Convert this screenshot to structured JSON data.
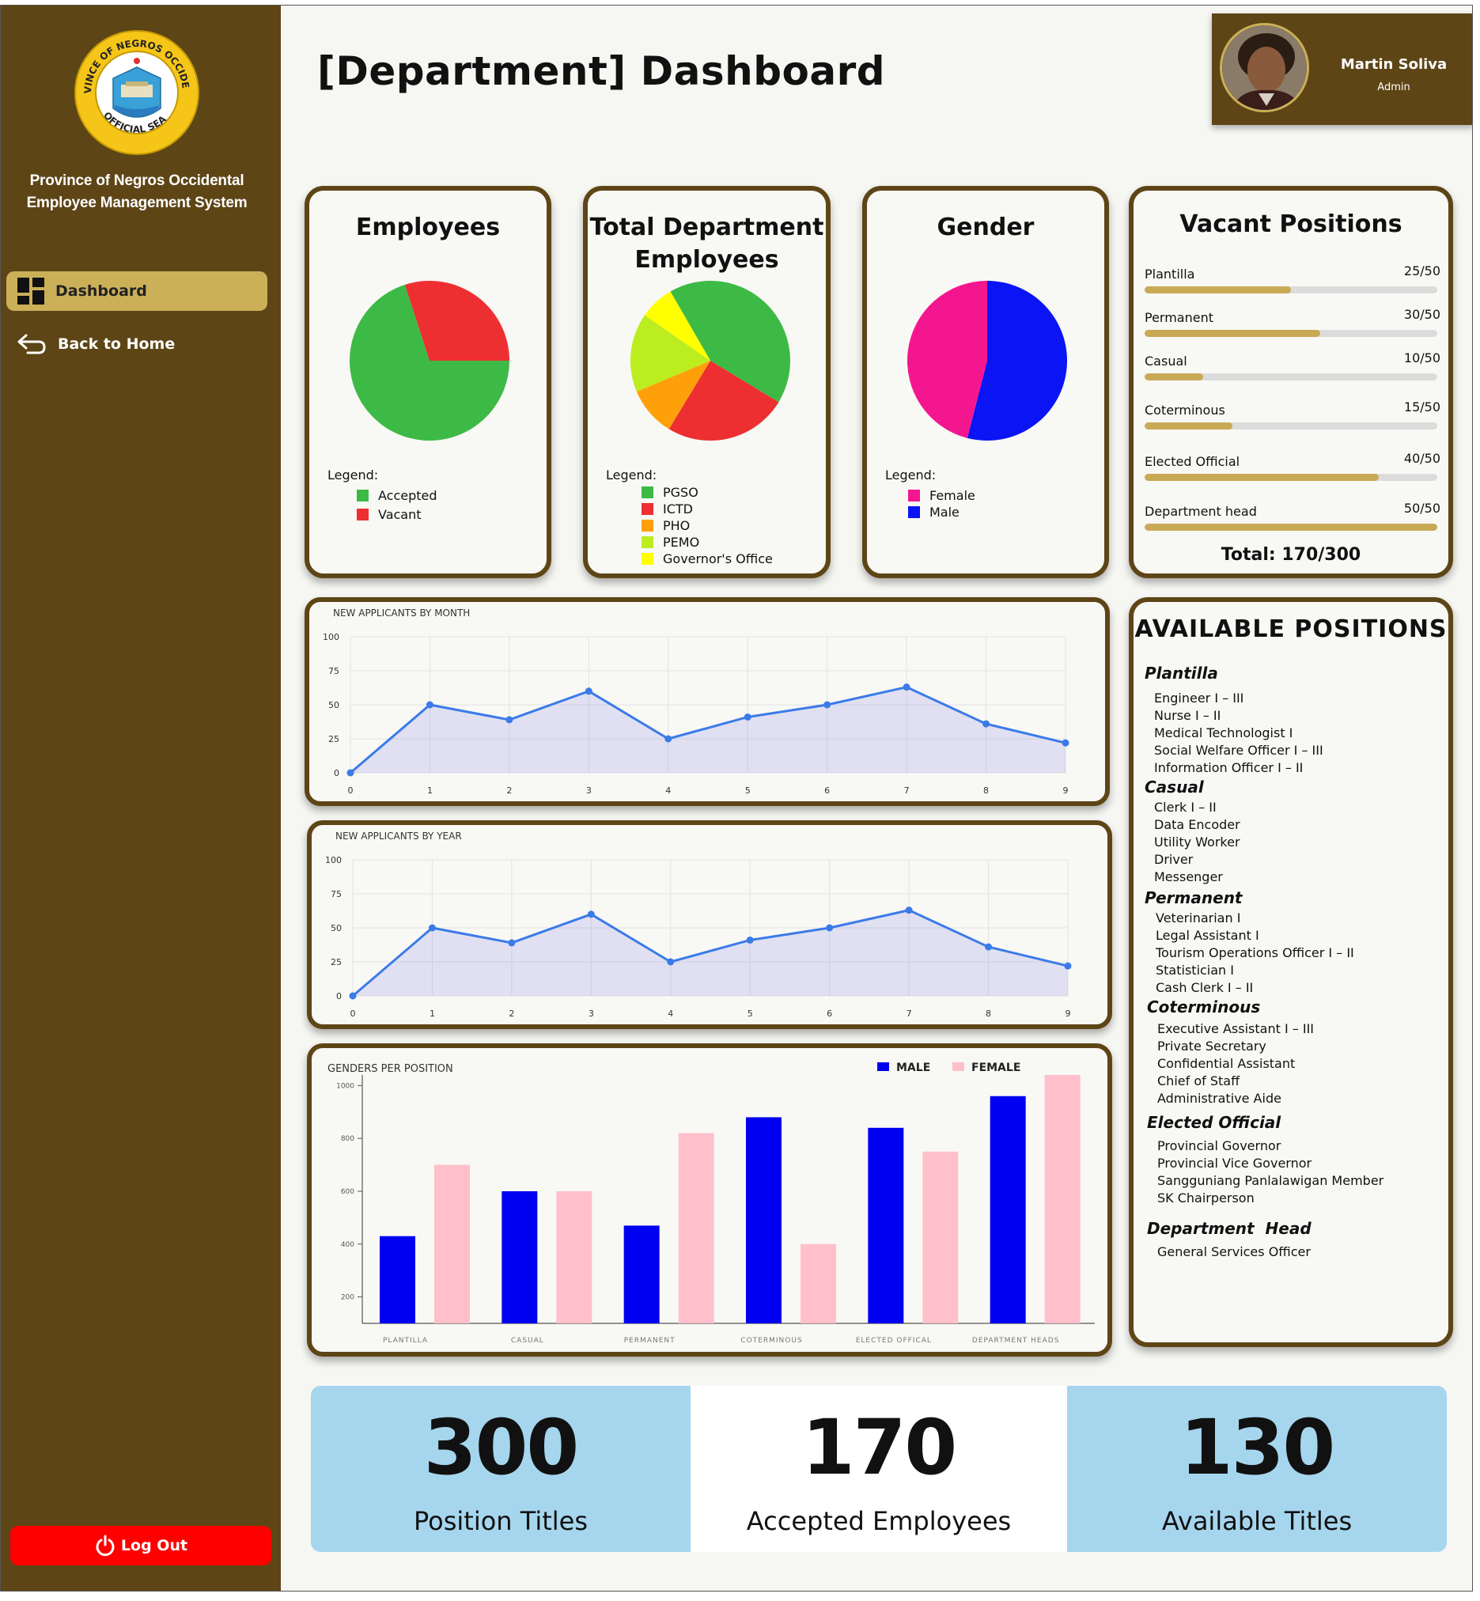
{
  "sidebar": {
    "seal_text_top": "PROVINCE OF NEGROS OCCIDENTAL",
    "seal_text_bottom": "OFFICIAL SEAL",
    "org_line1": "Province of Negros Occidental",
    "org_line2": "Employee Management System",
    "nav": [
      {
        "label": "Dashboard",
        "icon": "dashboard-grid-icon",
        "active": true
      },
      {
        "label": "Back to Home",
        "icon": "back-arrow-icon",
        "active": false
      }
    ],
    "logout_label": "Log Out",
    "logout_icon": "power-icon"
  },
  "header": {
    "title": "[Department] Dashboard",
    "user": {
      "name": "Martin Soliva",
      "role": "Admin"
    }
  },
  "colors": {
    "sidebar": "#5e4516",
    "accent": "#cbb058",
    "logout": "#ff0000",
    "stat_blue": "#a6d6ee"
  },
  "employees_card": {
    "title": "Employees",
    "legend_title": "Legend:",
    "legend": [
      {
        "label": "Accepted",
        "color": "#3dba45"
      },
      {
        "label": "Vacant",
        "color": "#ee2f31"
      }
    ],
    "slices": [
      {
        "label": "Accepted",
        "value": 70,
        "color": "#3dba45"
      },
      {
        "label": "Vacant",
        "value": 30,
        "color": "#ee2f31"
      }
    ]
  },
  "total_dept_card": {
    "title_line1": "Total Department",
    "title_line2": "Employees",
    "legend_title": "Legend:",
    "legend": [
      {
        "label": "PGSO",
        "color": "#3dba45"
      },
      {
        "label": "ICTD",
        "color": "#ee2f31"
      },
      {
        "label": "PHO",
        "color": "#ff9f0a"
      },
      {
        "label": "PEMO",
        "color": "#bced1f"
      },
      {
        "label": "Governor's Office",
        "color": "#ffff00"
      }
    ],
    "slices": [
      {
        "label": "PGSO",
        "value": 42,
        "color": "#3dba45"
      },
      {
        "label": "ICTD",
        "value": 25,
        "color": "#ee2f31"
      },
      {
        "label": "PHO",
        "value": 10,
        "color": "#ff9f0a"
      },
      {
        "label": "PEMO",
        "value": 16,
        "color": "#bced1f"
      },
      {
        "label": "Governor's Office",
        "value": 7,
        "color": "#ffff00"
      }
    ]
  },
  "gender_card": {
    "title": "Gender",
    "legend_title": "Legend:",
    "legend": [
      {
        "label": "Female",
        "color": "#f4168f"
      },
      {
        "label": "Male",
        "color": "#0a14f5"
      }
    ],
    "slices": [
      {
        "label": "Male",
        "value": 54,
        "color": "#0a14f5"
      },
      {
        "label": "Female",
        "value": 46,
        "color": "#f4168f"
      }
    ]
  },
  "vacant_card": {
    "title": "Vacant Positions",
    "items": [
      {
        "label": "Plantilla",
        "count": "25/50",
        "fraction": 0.5
      },
      {
        "label": "Permanent",
        "count": "30/50",
        "fraction": 0.6
      },
      {
        "label": "Casual",
        "count": "10/50",
        "fraction": 0.2
      },
      {
        "label": "Coterminous",
        "count": "15/50",
        "fraction": 0.3
      },
      {
        "label": "Elected Official",
        "count": "40/50",
        "fraction": 0.8
      },
      {
        "label": "Department head",
        "count": "50/50",
        "fraction": 1.0
      }
    ],
    "total": "Total: 170/300"
  },
  "available_card": {
    "title": "AVAILABLE POSITIONS",
    "groups": [
      {
        "name": "Plantilla",
        "items": [
          "Engineer I – III",
          "Nurse I – II",
          "Medical Technologist I",
          "Social Welfare Officer I – III",
          "Information Officer I – II"
        ]
      },
      {
        "name": "Casual",
        "items": [
          "Clerk I – II",
          "Data Encoder",
          "Utility Worker",
          "Driver",
          "Messenger"
        ]
      },
      {
        "name": "Permanent",
        "items": [
          "Veterinarian I",
          "Legal Assistant I",
          "Tourism Operations Officer I – II",
          "Statistician I",
          "Cash Clerk I – II"
        ]
      },
      {
        "name": "Coterminous",
        "items": [
          "Executive Assistant I – III",
          "Private Secretary",
          "Confidential Assistant",
          "Chief of Staff",
          "Administrative Aide"
        ]
      },
      {
        "name": "Elected Official",
        "items": [
          "Provincial Governor",
          "Provincial Vice Governor",
          "Sangguniang Panlalawigan Member",
          "SK Chairperson"
        ]
      },
      {
        "name": "Department  Head",
        "items": [
          "General Services Officer"
        ]
      }
    ]
  },
  "chart_data": [
    {
      "type": "area",
      "title": "NEW APPLICANTS BY MONTH",
      "x": [
        0,
        1,
        2,
        3,
        4,
        5,
        6,
        7,
        8,
        9
      ],
      "values": [
        0,
        50,
        39,
        60,
        25,
        41,
        50,
        63,
        36,
        22
      ],
      "yticks": [
        0,
        25,
        50,
        75,
        100
      ],
      "ylim": [
        0,
        100
      ],
      "grid": true,
      "color": "#3b7be8"
    },
    {
      "type": "area",
      "title": "NEW APPLICANTS BY YEAR",
      "x": [
        0,
        1,
        2,
        3,
        4,
        5,
        6,
        7,
        8,
        9
      ],
      "values": [
        0,
        50,
        39,
        60,
        25,
        41,
        50,
        63,
        36,
        22
      ],
      "yticks": [
        0,
        25,
        50,
        75,
        100
      ],
      "ylim": [
        0,
        100
      ],
      "grid": true,
      "color": "#3b7be8"
    },
    {
      "type": "bar",
      "title": "GENDERS PER POSITION",
      "categories": [
        "PLANTILLA",
        "CASUAL",
        "PERMANENT",
        "COTERMINOUS",
        "ELECTED OFFICAL",
        "DEPARTMENT HEADS"
      ],
      "series": [
        {
          "name": "MALE",
          "color": "#0000f0",
          "values": [
            430,
            600,
            470,
            880,
            840,
            960
          ]
        },
        {
          "name": "FEMALE",
          "color": "#ffc0cb",
          "values": [
            700,
            600,
            820,
            400,
            750,
            1040
          ]
        }
      ],
      "yticks": [
        200,
        400,
        600,
        800,
        1000
      ],
      "ylim": [
        100,
        1040
      ],
      "legend": "top-right"
    }
  ],
  "stats": [
    {
      "value": "300",
      "label": "Position Titles"
    },
    {
      "value": "170",
      "label": "Accepted Employees"
    },
    {
      "value": "130",
      "label": "Available Titles"
    }
  ]
}
